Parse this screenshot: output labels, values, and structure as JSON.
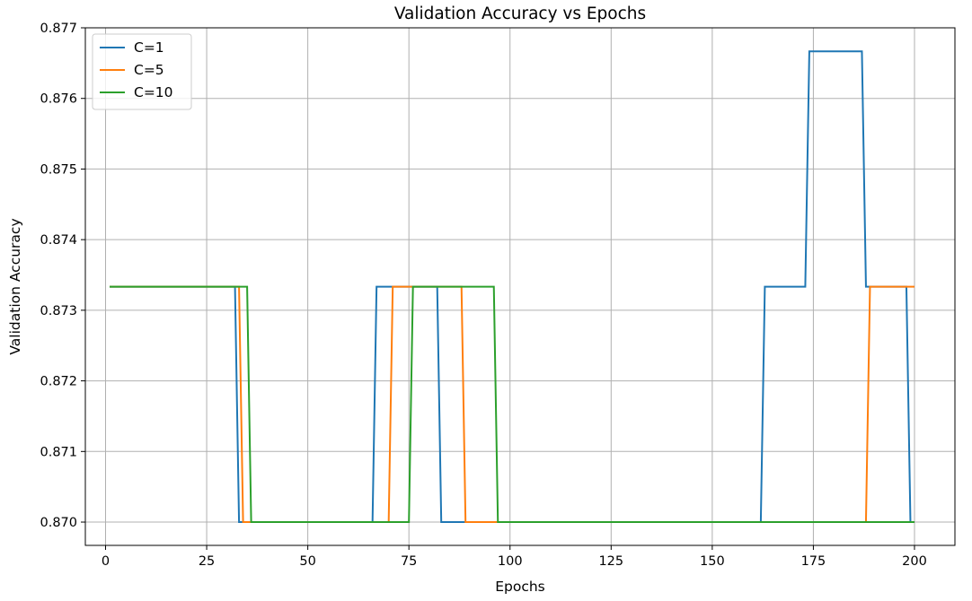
{
  "chart_data": {
    "type": "line",
    "title": "Validation Accuracy vs Epochs",
    "xlabel": "Epochs",
    "ylabel": "Validation Accuracy",
    "xlim": [
      -5,
      210
    ],
    "ylim": [
      0.86967,
      0.877
    ],
    "xticks": [
      0,
      25,
      50,
      75,
      100,
      125,
      150,
      175,
      200
    ],
    "xtick_labels": [
      "0",
      "25",
      "50",
      "75",
      "100",
      "125",
      "150",
      "175",
      "200"
    ],
    "yticks": [
      0.87,
      0.871,
      0.872,
      0.873,
      0.874,
      0.875,
      0.876,
      0.877
    ],
    "ytick_labels": [
      "0.870",
      "0.871",
      "0.872",
      "0.873",
      "0.874",
      "0.875",
      "0.876",
      "0.877"
    ],
    "grid": true,
    "legend_position": "top-left",
    "series": [
      {
        "name": "C=1",
        "color": "#1f77b4",
        "points": [
          [
            1,
            0.873333
          ],
          [
            32,
            0.873333
          ],
          [
            33,
            0.87
          ],
          [
            66,
            0.87
          ],
          [
            67,
            0.873333
          ],
          [
            82,
            0.873333
          ],
          [
            83,
            0.87
          ],
          [
            162,
            0.87
          ],
          [
            163,
            0.873333
          ],
          [
            173,
            0.873333
          ],
          [
            174,
            0.876667
          ],
          [
            187,
            0.876667
          ],
          [
            188,
            0.873333
          ],
          [
            198,
            0.873333
          ],
          [
            199,
            0.87
          ],
          [
            200,
            0.87
          ]
        ]
      },
      {
        "name": "C=5",
        "color": "#ff7f0e",
        "points": [
          [
            1,
            0.873333
          ],
          [
            33,
            0.873333
          ],
          [
            34,
            0.87
          ],
          [
            70,
            0.87
          ],
          [
            71,
            0.873333
          ],
          [
            88,
            0.873333
          ],
          [
            89,
            0.87
          ],
          [
            188,
            0.87
          ],
          [
            189,
            0.873333
          ],
          [
            200,
            0.873333
          ]
        ]
      },
      {
        "name": "C=10",
        "color": "#2ca02c",
        "points": [
          [
            1,
            0.873333
          ],
          [
            35,
            0.873333
          ],
          [
            36,
            0.87
          ],
          [
            75,
            0.87
          ],
          [
            76,
            0.873333
          ],
          [
            96,
            0.873333
          ],
          [
            97,
            0.87
          ],
          [
            200,
            0.87
          ]
        ]
      }
    ]
  }
}
